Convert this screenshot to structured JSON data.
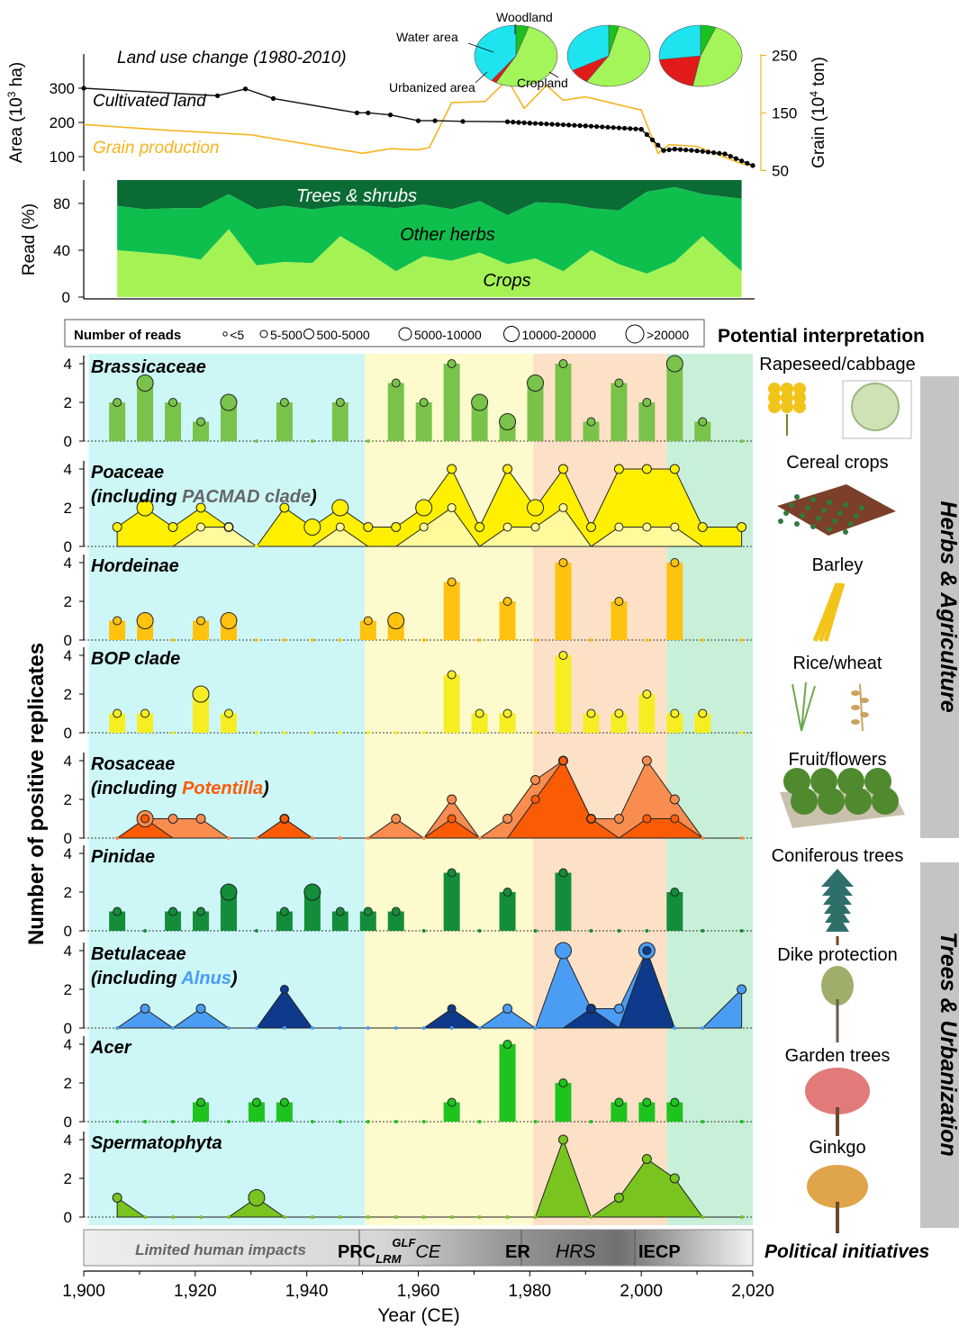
{
  "colors": {
    "cultivated": "#111111",
    "grain": "#f5b41e",
    "pie_water": "#1ee4f0",
    "pie_crop": "#a3f55a",
    "pie_wood": "#19c21e",
    "pie_urban": "#e11a1a",
    "trees": "#0b6b35",
    "herbs": "#0fbf4e",
    "crops": "#a5f255",
    "period1": "#cdf7f7",
    "period2": "#fdfacd",
    "period3": "#fde1c6",
    "period4": "#c8f0d8",
    "brassicaceae": "#79c34a",
    "poaceae": "#fff000",
    "poaceae_inner": "#fffa9b",
    "hordeinae": "#ffc20e",
    "bop": "#f6ee22",
    "rosaceae": "#f98c4f",
    "rosaceae_inner": "#fb5b05",
    "pinidae": "#138d3a",
    "betula": "#4a9df3",
    "betula_inner": "#0f3a8c",
    "acer": "#1ec41e",
    "sperm": "#79c41e",
    "label_orange": "#fb5b05",
    "label_blue": "#4a9df3",
    "label_grey": "#666666"
  },
  "top": {
    "title": "Land use change (1980-2010)",
    "series_cultivated": "Cultivated land",
    "series_grain": "Grain production",
    "ylabel_left": "Area (10",
    "ylabel_left_sup": "3",
    "ylabel_left_end": " ha)",
    "ylabel_right": "Grain (10",
    "ylabel_right_sup": "4",
    "ylabel_right_end": " ton)",
    "yticks_left": [
      "100",
      "200",
      "300"
    ],
    "yticks_right": [
      "50",
      "150",
      "250"
    ],
    "pie_labels": {
      "water": "Water area",
      "wood": "Woodland",
      "urban": "Urbanized area",
      "crop": "Cropland"
    },
    "pies": [
      {
        "water": 0.4,
        "urban": 0.02,
        "crop": 0.53,
        "wood": 0.05
      },
      {
        "water": 0.33,
        "urban": 0.08,
        "crop": 0.55,
        "wood": 0.04
      },
      {
        "water": 0.27,
        "urban": 0.2,
        "crop": 0.47,
        "wood": 0.06
      }
    ]
  },
  "reads": {
    "ylabel": "Read (%)",
    "yticks": [
      "0",
      "40",
      "80"
    ],
    "label_trees": "Trees & shrubs",
    "label_herbs": "Other herbs",
    "label_crops": "Crops"
  },
  "legend": {
    "title": "Number of reads",
    "items": [
      "<5",
      "5-500",
      "500-5000",
      "5000-10000",
      "10000-20000",
      ">20000"
    ],
    "interp": "Potential interpretation"
  },
  "panels": [
    {
      "name": "Brassicaceae",
      "interp": "Rapeseed/cabbage"
    },
    {
      "name": "Poaceae",
      "name2a": "(including ",
      "name2b": "PACMAD clade",
      "name2c": ")",
      "interp": "Cereal crops"
    },
    {
      "name": "Hordeinae",
      "interp": "Barley"
    },
    {
      "name": "BOP clade",
      "interp": "Rice/wheat"
    },
    {
      "name": "Rosaceae",
      "name2a": "(including ",
      "name2b": "Potentilla",
      "name2c": ")",
      "interp": "Fruit/flowers"
    },
    {
      "name": "Pinidae",
      "interp": "Coniferous trees"
    },
    {
      "name": "Betulaceae",
      "name2a": "(including ",
      "name2b": "Alnus",
      "name2c": ")",
      "interp": "Dike protection"
    },
    {
      "name": "Acer",
      "interp": "Garden trees"
    },
    {
      "name": "Spermatophyta",
      "interp": "Ginkgo"
    }
  ],
  "panel_yticks": [
    "0",
    "2",
    "4"
  ],
  "ylabel_main": "Number of positive replicates",
  "groups": {
    "herbs": "Herbs & Agriculture",
    "trees": "Trees & Urbanization"
  },
  "timeline": {
    "p1": "Limited human impacts",
    "p2a": "PRC",
    "p2b": "LRM",
    "p2c": "GLF",
    "p2d": "CE",
    "p3a": "ER",
    "p3b": "HRS",
    "p4": "IECP",
    "label": "Political initiatives"
  },
  "xaxis": {
    "label": "Year (CE)",
    "ticks": [
      "1,900",
      "1,920",
      "1,940",
      "1,960",
      "1,980",
      "2,000",
      "2,020"
    ]
  },
  "chart_data": [
    {
      "type": "line",
      "title": "Land use change (1980-2010)",
      "series": [
        {
          "name": "Cultivated land",
          "x": [
            1900,
            1924,
            1929,
            1934,
            1949,
            1951,
            1955,
            1960,
            1963,
            1968,
            1976,
            1978,
            1980,
            1990,
            2000,
            2004,
            2006,
            2010,
            2015,
            2020
          ],
          "values": [
            300,
            278,
            298,
            270,
            228,
            228,
            222,
            205,
            205,
            203,
            202,
            200,
            198,
            190,
            180,
            118,
            122,
            117,
            108,
            74
          ]
        },
        {
          "name": "Grain production",
          "x": [
            1900,
            1915,
            1930,
            1950,
            1955,
            1960,
            1962,
            1966,
            1972,
            1976,
            1979,
            1983,
            1986,
            1990,
            2000,
            2003,
            2005,
            2010,
            2018,
            2020
          ],
          "values": [
            130,
            120,
            112,
            80,
            88,
            86,
            90,
            168,
            170,
            208,
            158,
            198,
            172,
            178,
            155,
            80,
            95,
            92,
            62,
            58
          ]
        }
      ]
    },
    {
      "type": "area",
      "ylabel": "Read (%)",
      "x": [
        1906,
        1911,
        1916,
        1921,
        1926,
        1931,
        1936,
        1941,
        1946,
        1951,
        1956,
        1961,
        1966,
        1971,
        1976,
        1981,
        1986,
        1991,
        1996,
        2001,
        2006,
        2011,
        2018
      ],
      "series": [
        {
          "name": "Crops",
          "values": [
            40,
            38,
            36,
            32,
            58,
            27,
            30,
            29,
            52,
            38,
            22,
            35,
            31,
            38,
            28,
            33,
            22,
            40,
            28,
            20,
            30,
            52,
            22
          ]
        },
        {
          "name": "Other herbs",
          "values": [
            38,
            37,
            40,
            44,
            30,
            48,
            48,
            46,
            26,
            40,
            54,
            44,
            44,
            44,
            42,
            48,
            58,
            36,
            46,
            70,
            64,
            36,
            62
          ]
        },
        {
          "name": "Trees & shrubs",
          "values": [
            22,
            25,
            24,
            24,
            12,
            25,
            22,
            25,
            22,
            22,
            24,
            21,
            25,
            18,
            30,
            19,
            20,
            24,
            26,
            10,
            6,
            12,
            16
          ]
        }
      ]
    },
    {
      "type": "bar",
      "title": "Brassicaceae",
      "x": [
        1906,
        1911,
        1916,
        1921,
        1926,
        1931,
        1936,
        1941,
        1946,
        1951,
        1956,
        1961,
        1966,
        1971,
        1976,
        1981,
        1986,
        1991,
        1996,
        2001,
        2006,
        2011,
        2018
      ],
      "values": [
        2,
        3,
        2,
        1,
        2,
        0,
        2,
        0,
        2,
        0,
        3,
        2,
        4,
        2,
        1,
        3,
        4,
        1,
        3,
        2,
        4,
        1,
        0
      ]
    },
    {
      "type": "area",
      "title": "Poaceae",
      "x": [
        1906,
        1911,
        1916,
        1921,
        1926,
        1931,
        1936,
        1941,
        1946,
        1951,
        1956,
        1961,
        1966,
        1971,
        1976,
        1981,
        1986,
        1991,
        1996,
        2001,
        2006,
        2011,
        2018
      ],
      "series": [
        {
          "name": "Poaceae",
          "values": [
            1,
            2,
            1,
            2,
            1,
            0,
            2,
            1,
            2,
            1,
            1,
            2,
            4,
            1,
            4,
            2,
            4,
            1,
            4,
            4,
            4,
            1,
            1
          ]
        },
        {
          "name": "PACMAD clade",
          "values": [
            0,
            0,
            0,
            1,
            1,
            0,
            0,
            0,
            1,
            0,
            0,
            1,
            2,
            0,
            1,
            1,
            2,
            0,
            1,
            1,
            1,
            0,
            0
          ]
        }
      ]
    },
    {
      "type": "bar",
      "title": "Hordeinae",
      "x": [
        1906,
        1911,
        1916,
        1921,
        1926,
        1931,
        1936,
        1941,
        1946,
        1951,
        1956,
        1961,
        1966,
        1971,
        1976,
        1981,
        1986,
        1991,
        1996,
        2001,
        2006,
        2011,
        2018
      ],
      "values": [
        1,
        1,
        0,
        1,
        1,
        0,
        0,
        0,
        0,
        1,
        1,
        0,
        3,
        0,
        2,
        0,
        4,
        0,
        2,
        0,
        4,
        0,
        0
      ]
    },
    {
      "type": "bar",
      "title": "BOP clade",
      "x": [
        1906,
        1911,
        1916,
        1921,
        1926,
        1931,
        1936,
        1941,
        1946,
        1951,
        1956,
        1961,
        1966,
        1971,
        1976,
        1981,
        1986,
        1991,
        1996,
        2001,
        2006,
        2011,
        2018
      ],
      "values": [
        1,
        1,
        0,
        2,
        1,
        0,
        0,
        0,
        0,
        0,
        0,
        0,
        3,
        1,
        1,
        0,
        4,
        1,
        1,
        2,
        1,
        1,
        0
      ]
    },
    {
      "type": "area",
      "title": "Rosaceae",
      "x": [
        1906,
        1911,
        1916,
        1921,
        1926,
        1931,
        1936,
        1941,
        1946,
        1951,
        1956,
        1961,
        1966,
        1971,
        1976,
        1981,
        1986,
        1991,
        1996,
        2001,
        2006,
        2011,
        2018
      ],
      "series": [
        {
          "name": "Rosaceae",
          "values": [
            0,
            1,
            1,
            1,
            0,
            0,
            1,
            0,
            0,
            0,
            1,
            0,
            2,
            0,
            1,
            3,
            4,
            1,
            1,
            4,
            2,
            0,
            0
          ]
        },
        {
          "name": "Potentilla",
          "values": [
            0,
            1,
            0,
            0,
            0,
            0,
            1,
            0,
            0,
            0,
            0,
            0,
            1,
            0,
            0,
            2,
            4,
            1,
            0,
            1,
            1,
            0,
            0
          ]
        }
      ]
    },
    {
      "type": "bar",
      "title": "Pinidae",
      "x": [
        1906,
        1911,
        1916,
        1921,
        1926,
        1931,
        1936,
        1941,
        1946,
        1951,
        1956,
        1961,
        1966,
        1971,
        1976,
        1981,
        1986,
        1991,
        1996,
        2001,
        2006,
        2011,
        2018
      ],
      "values": [
        1,
        0,
        1,
        1,
        2,
        0,
        1,
        2,
        1,
        1,
        1,
        0,
        3,
        0,
        2,
        0,
        3,
        0,
        0,
        0,
        2,
        0,
        0
      ]
    },
    {
      "type": "area",
      "title": "Betulaceae",
      "x": [
        1906,
        1911,
        1916,
        1921,
        1926,
        1931,
        1936,
        1941,
        1946,
        1951,
        1956,
        1961,
        1966,
        1971,
        1976,
        1981,
        1986,
        1991,
        1996,
        2001,
        2006,
        2011,
        2018
      ],
      "series": [
        {
          "name": "Betulaceae",
          "values": [
            0,
            1,
            0,
            1,
            0,
            0,
            0,
            0,
            0,
            0,
            0,
            0,
            0,
            0,
            1,
            0,
            4,
            1,
            1,
            4,
            0,
            0,
            2
          ]
        },
        {
          "name": "Alnus",
          "values": [
            0,
            0,
            0,
            0,
            0,
            0,
            2,
            0,
            0,
            0,
            0,
            0,
            1,
            0,
            0,
            0,
            0,
            1,
            0,
            4,
            0,
            0,
            0
          ]
        }
      ]
    },
    {
      "type": "bar",
      "title": "Acer",
      "x": [
        1906,
        1911,
        1916,
        1921,
        1926,
        1931,
        1936,
        1941,
        1946,
        1951,
        1956,
        1961,
        1966,
        1971,
        1976,
        1981,
        1986,
        1991,
        1996,
        2001,
        2006,
        2011,
        2018
      ],
      "values": [
        0,
        0,
        0,
        1,
        0,
        1,
        1,
        0,
        0,
        0,
        0,
        0,
        1,
        0,
        4,
        0,
        2,
        0,
        1,
        1,
        1,
        0,
        0
      ]
    },
    {
      "type": "area",
      "title": "Spermatophyta",
      "x": [
        1906,
        1911,
        1916,
        1921,
        1926,
        1931,
        1936,
        1941,
        1946,
        1951,
        1956,
        1961,
        1966,
        1971,
        1976,
        1981,
        1986,
        1991,
        1996,
        2001,
        2006,
        2011,
        2018
      ],
      "values": [
        1,
        0,
        0,
        0,
        0,
        1,
        0,
        0,
        0,
        0,
        0,
        0,
        0,
        0,
        0,
        0,
        4,
        0,
        1,
        3,
        2,
        0,
        0
      ]
    }
  ]
}
